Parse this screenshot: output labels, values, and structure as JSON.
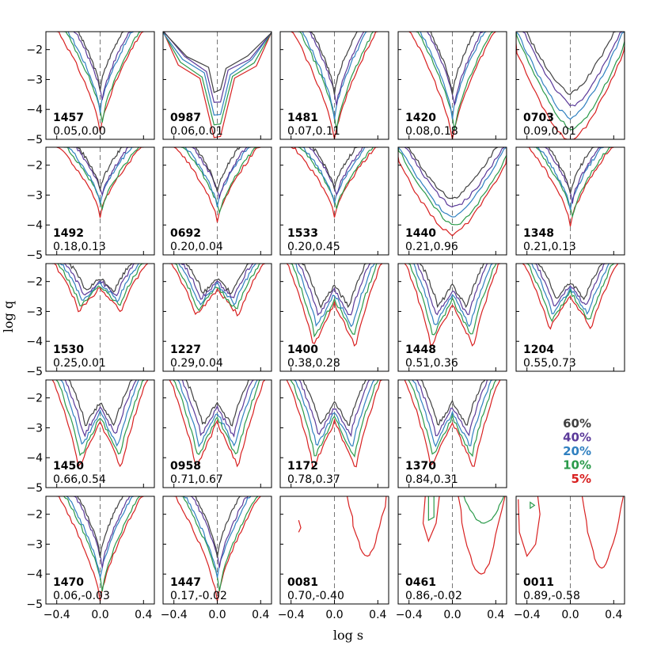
{
  "chart_data": {
    "type": "contour-grid",
    "xlabel": "log s",
    "ylabel": "log q",
    "xlim": [
      -0.5,
      0.5
    ],
    "ylim": [
      -5,
      -1.4
    ],
    "xticks": [
      "-0.4",
      "0.0",
      "0.4"
    ],
    "yticks": [
      "-2",
      "-3",
      "-4",
      "-5"
    ],
    "legend": {
      "placement": "row-4-column-5",
      "entries": [
        {
          "label": "60%",
          "color": "#404040"
        },
        {
          "label": "40%",
          "color": "#5b3a9a"
        },
        {
          "label": "20%",
          "color": "#3080c0"
        },
        {
          "label": "10%",
          "color": "#2a9a4a"
        },
        {
          "label": "5%",
          "color": "#d82020"
        }
      ]
    },
    "panels": [
      {
        "id": "1457",
        "values": "0.05,0.00",
        "shape": "V",
        "depth": 0.9
      },
      {
        "id": "0987",
        "values": "0.06,0.01",
        "shape": "spike",
        "depth": 0.9
      },
      {
        "id": "1481",
        "values": "0.07,0.11",
        "shape": "V",
        "depth": 1.0
      },
      {
        "id": "1420",
        "values": "0.08,0.18",
        "shape": "V",
        "depth": 1.0
      },
      {
        "id": "0703",
        "values": "0.09,0.01",
        "shape": "wide",
        "depth": 1.0
      },
      {
        "id": "1492",
        "values": "0.18,0.13",
        "shape": "V",
        "depth": 0.55
      },
      {
        "id": "0692",
        "values": "0.20,0.04",
        "shape": "V",
        "depth": 0.6
      },
      {
        "id": "1533",
        "values": "0.20,0.45",
        "shape": "V",
        "depth": 0.55
      },
      {
        "id": "1440",
        "values": "0.21,0.96",
        "shape": "wide",
        "depth": 0.75
      },
      {
        "id": "1348",
        "values": "0.21,0.13",
        "shape": "V",
        "depth": 0.65
      },
      {
        "id": "1530",
        "values": "0.25,0.01",
        "shape": "W",
        "depth": 0.4
      },
      {
        "id": "1227",
        "values": "0.29,0.04",
        "shape": "W",
        "depth": 0.45
      },
      {
        "id": "1400",
        "values": "0.38,0.28",
        "shape": "W",
        "depth": 0.8
      },
      {
        "id": "1448",
        "values": "0.51,0.36",
        "shape": "W",
        "depth": 0.8
      },
      {
        "id": "1204",
        "values": "0.55,0.73",
        "shape": "W",
        "depth": 0.6
      },
      {
        "id": "1450",
        "values": "0.66,0.54",
        "shape": "W",
        "depth": 0.85
      },
      {
        "id": "0958",
        "values": "0.71,0.67",
        "shape": "W",
        "depth": 0.85
      },
      {
        "id": "1172",
        "values": "0.78,0.37",
        "shape": "W",
        "depth": 0.85
      },
      {
        "id": "1370",
        "values": "0.84,0.31",
        "shape": "W",
        "depth": 0.85
      },
      null,
      {
        "id": "1470",
        "values": "0.06,-0.03",
        "shape": "V",
        "depth": 0.95
      },
      {
        "id": "1447",
        "values": "0.17,-0.02",
        "shape": "V",
        "depth": 0.95
      },
      {
        "id": "0081",
        "values": "0.70,-0.40",
        "shape": "sparse1",
        "depth": 0.7
      },
      {
        "id": "0461",
        "values": "0.86,-0.02",
        "shape": "sparse2",
        "depth": 0.7
      },
      {
        "id": "0011",
        "values": "0.89,-0.58",
        "shape": "sparse3",
        "depth": 0.85
      }
    ]
  }
}
